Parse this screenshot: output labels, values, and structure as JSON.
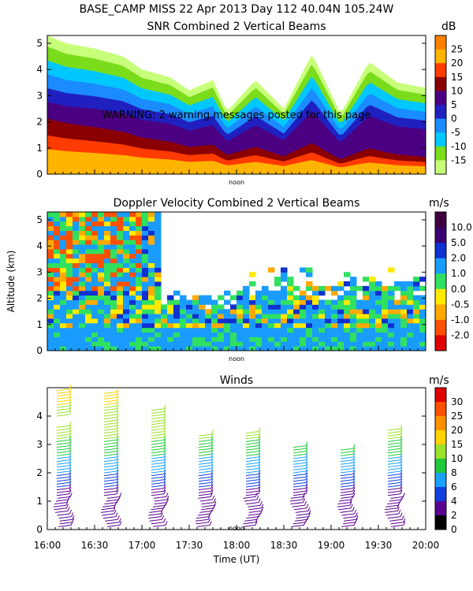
{
  "header": {
    "line1": "BASE_CAMP MISS  22 Apr 2013 Day 112 40.04N 105.24W"
  },
  "warning": "WARNING: 2 warning messages posted for this page",
  "chart_data": [
    {
      "type": "heatmap",
      "title": "SNR Combined 2 Vertical Beams",
      "unit": "dB",
      "ylim": [
        0,
        5.3
      ],
      "y_ticks": [
        "0",
        "1",
        "2",
        "3",
        "4",
        "5"
      ],
      "colorbar_labels": [
        "25",
        "20",
        "15",
        "10",
        "5",
        "0",
        "-5",
        "-10",
        "-15"
      ],
      "colorbar_colors": [
        "#ff7f00",
        "#ffb400",
        "#ff3b00",
        "#8a0000",
        "#4b0082",
        "#2020c0",
        "#1a8cff",
        "#00c8ff",
        "#7bdc1b",
        "#c8ff7a"
      ],
      "top_boundary_km": [
        [
          16.0,
          5.3
        ],
        [
          16.2,
          5.0
        ],
        [
          16.5,
          4.8
        ],
        [
          16.8,
          4.5
        ],
        [
          17.0,
          4.0
        ],
        [
          17.3,
          3.7
        ],
        [
          17.5,
          3.2
        ],
        [
          17.75,
          3.6
        ],
        [
          17.9,
          2.4
        ],
        [
          18.2,
          3.6
        ],
        [
          18.5,
          2.5
        ],
        [
          18.8,
          4.6
        ],
        [
          19.1,
          2.3
        ],
        [
          19.4,
          4.3
        ],
        [
          19.7,
          3.5
        ],
        [
          20.0,
          3.3
        ]
      ],
      "noon_label": "noon"
    },
    {
      "type": "heatmap",
      "title": "Doppler Velocity Combined 2 Vertical Beams",
      "unit": "m/s",
      "ylim": [
        0,
        5.3
      ],
      "y_ticks": [
        "0",
        "1",
        "2",
        "3",
        "4",
        "5"
      ],
      "ylabel": "Altitude (km)",
      "colorbar_labels": [
        "10.0",
        "5.0",
        "2.0",
        "1.0",
        "0.0",
        "-0.5",
        "-1.0",
        "-2.0"
      ],
      "colorbar_colors": [
        "#400040",
        "#3a0070",
        "#1030d0",
        "#1a9cff",
        "#30e060",
        "#ffea00",
        "#ffaa00",
        "#ff5000",
        "#e00000"
      ],
      "noon_label": "noon"
    },
    {
      "type": "scatter",
      "title": "Winds",
      "unit": "m/s",
      "ylim": [
        0,
        5
      ],
      "y_ticks": [
        "0",
        "1",
        "2",
        "3",
        "4"
      ],
      "x_ticks": [
        "16:00",
        "16:30",
        "17:00",
        "17:30",
        "18:00",
        "18:30",
        "19:00",
        "19:30",
        "20:00"
      ],
      "xlabel": "Time (UT)",
      "colorbar_labels": [
        "30",
        "25",
        "20",
        "15",
        "10",
        "8",
        "6",
        "4",
        "2",
        "0"
      ],
      "colorbar_colors": [
        "#e00000",
        "#ff5000",
        "#ff9000",
        "#ffd200",
        "#9be22d",
        "#22c83c",
        "#1aa0ff",
        "#1040e0",
        "#5a0090",
        "#000000"
      ],
      "profiles": [
        {
          "time": "16:10",
          "top_km": 4.9,
          "gap": [
            3.7,
            4.0
          ]
        },
        {
          "time": "16:40",
          "top_km": 4.8,
          "gap": []
        },
        {
          "time": "17:10",
          "top_km": 4.3,
          "gap": []
        },
        {
          "time": "17:40",
          "top_km": 3.4,
          "gap": []
        },
        {
          "time": "18:10",
          "top_km": 3.5,
          "gap": []
        },
        {
          "time": "18:40",
          "top_km": 3.0,
          "gap": []
        },
        {
          "time": "19:10",
          "top_km": 2.9,
          "gap": []
        },
        {
          "time": "19:40",
          "top_km": 3.6,
          "gap": []
        }
      ],
      "noon_label": "noon"
    }
  ]
}
